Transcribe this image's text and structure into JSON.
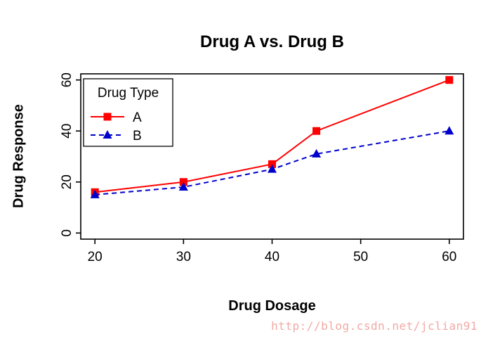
{
  "chart_data": {
    "type": "line",
    "title": "Drug A vs. Drug B",
    "xlabel": "Drug Dosage",
    "ylabel": "Drug Response",
    "x": [
      20,
      30,
      40,
      45,
      60
    ],
    "series": [
      {
        "name": "A",
        "values": [
          16,
          20,
          27,
          40,
          60
        ],
        "color": "#ff0000",
        "marker": "square",
        "line_style": "solid"
      },
      {
        "name": "B",
        "values": [
          15,
          18,
          25,
          31,
          40
        ],
        "color": "#0000cc",
        "marker": "triangle",
        "line_style": "dashed"
      }
    ],
    "xticks": [
      20,
      30,
      40,
      50,
      60
    ],
    "yticks": [
      0,
      20,
      40,
      60
    ],
    "xlim": [
      18.4,
      61.6
    ],
    "ylim": [
      -2.4,
      62.4
    ],
    "grid": false,
    "legend": {
      "title": "Drug Type",
      "position": "top-left",
      "entries": [
        "A",
        "B"
      ]
    }
  },
  "watermark": {
    "text": "http://blog.csdn.net/jclian91",
    "color": "#f2a9a4"
  },
  "frame": {
    "background": "#ffffff",
    "axis_color": "#000000"
  }
}
